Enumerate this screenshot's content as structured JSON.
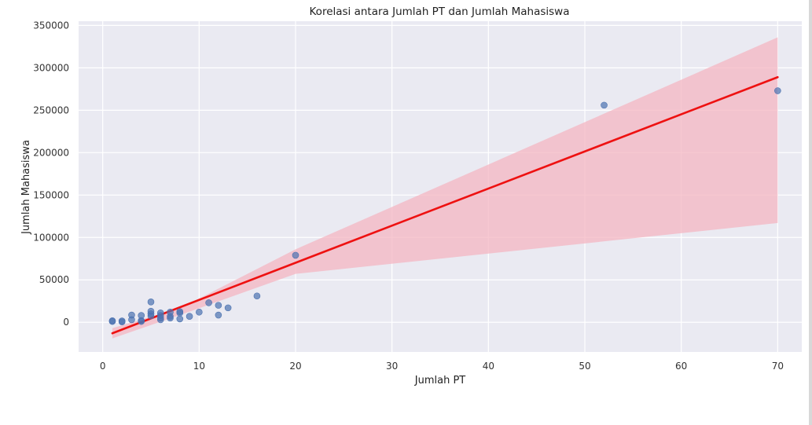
{
  "chart_data": {
    "type": "scatter",
    "title": "Korelasi antara Jumlah PT dan Jumlah Mahasiswa",
    "xlabel": "Jumlah PT",
    "ylabel": "Jumlah Mahasiswa",
    "xlim": [
      -2.5,
      72.5
    ],
    "ylim": [
      -35000,
      355000
    ],
    "xticks": [
      0,
      10,
      20,
      30,
      40,
      50,
      60,
      70
    ],
    "yticks": [
      0,
      50000,
      100000,
      150000,
      200000,
      250000,
      300000,
      350000
    ],
    "grid": true,
    "legend": "none",
    "colors": {
      "plot_background": "#eaeaf2",
      "grid": "#ffffff",
      "points": "#4c72b0",
      "regression_line": "#ee1111",
      "confidence_band": "#f4b6c2"
    },
    "series": [
      {
        "kind": "scatter",
        "points": [
          [
            1,
            1000
          ],
          [
            1,
            1800
          ],
          [
            2,
            500
          ],
          [
            2,
            1500
          ],
          [
            3,
            3000
          ],
          [
            3,
            8500
          ],
          [
            4,
            1000
          ],
          [
            4,
            2000
          ],
          [
            4,
            8000
          ],
          [
            5,
            7500
          ],
          [
            5,
            10000
          ],
          [
            5,
            13000
          ],
          [
            5,
            24000
          ],
          [
            6,
            3000
          ],
          [
            6,
            5000
          ],
          [
            6,
            8000
          ],
          [
            6,
            11000
          ],
          [
            7,
            5000
          ],
          [
            7,
            7000
          ],
          [
            7,
            12000
          ],
          [
            8,
            4000
          ],
          [
            8,
            11000
          ],
          [
            8,
            12500
          ],
          [
            9,
            7000
          ],
          [
            10,
            12000
          ],
          [
            11,
            23000
          ],
          [
            12,
            8500
          ],
          [
            12,
            20000
          ],
          [
            13,
            17000
          ],
          [
            16,
            31000
          ],
          [
            20,
            79000
          ],
          [
            52,
            256000
          ],
          [
            70,
            273000
          ]
        ]
      },
      {
        "kind": "regression",
        "x_range": [
          1,
          70
        ],
        "line": [
          [
            1,
            -13000
          ],
          [
            70,
            289000
          ]
        ],
        "ci_lower": [
          [
            1,
            -19000
          ],
          [
            8,
            8500
          ],
          [
            20,
            57000
          ],
          [
            70,
            117000
          ]
        ],
        "ci_upper": [
          [
            1,
            -7000
          ],
          [
            8,
            16500
          ],
          [
            20,
            86000
          ],
          [
            70,
            336000
          ]
        ]
      }
    ]
  }
}
